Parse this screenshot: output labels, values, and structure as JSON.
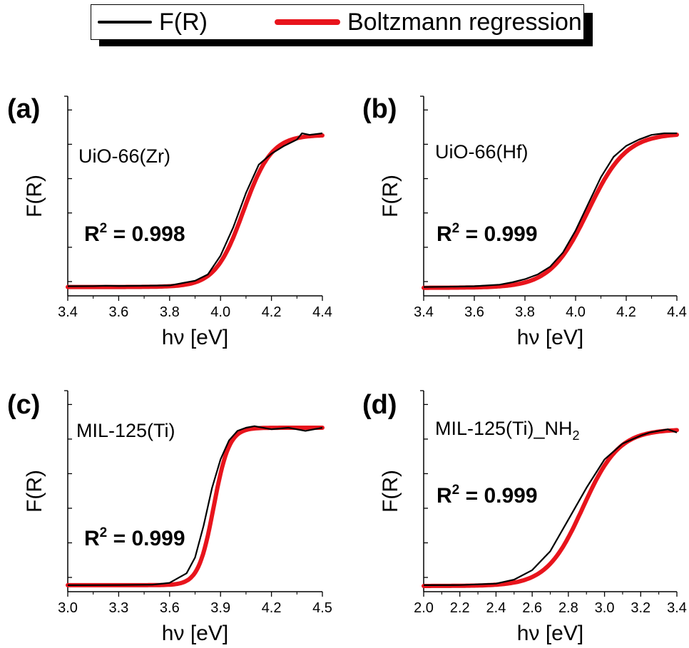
{
  "legend": {
    "entries": [
      {
        "label": "F(R)",
        "color": "#000000"
      },
      {
        "label": "Boltzmann regression",
        "color": "#e8141c"
      }
    ]
  },
  "chart_data": [
    {
      "type": "line",
      "panel_label": "(a)",
      "sample": "UiO-66(Zr)",
      "r2_prefix": "R",
      "r2_sup": "2",
      "r2_value": " = 0.998",
      "xlabel": "hν [eV]",
      "ylabel": "F(R)",
      "xlim": [
        3.4,
        4.4
      ],
      "xticks": [
        3.4,
        3.6,
        3.8,
        4.0,
        4.2,
        4.4
      ],
      "xtick_labels": [
        "3.4",
        "3.6",
        "3.8",
        "4.0",
        "4.2",
        "4.4"
      ],
      "ylim": [
        0,
        1
      ],
      "yticks_unlabeled": 6,
      "series": [
        {
          "name": "F(R)",
          "color": "#000000",
          "x": [
            3.4,
            3.5,
            3.55,
            3.6,
            3.7,
            3.8,
            3.9,
            3.95,
            4.0,
            4.05,
            4.1,
            4.15,
            4.2,
            4.25,
            4.3,
            4.32,
            4.35,
            4.4
          ],
          "y": [
            0.025,
            0.026,
            0.028,
            0.027,
            0.028,
            0.03,
            0.06,
            0.1,
            0.22,
            0.4,
            0.62,
            0.8,
            0.87,
            0.92,
            0.96,
            1.0,
            0.99,
            1.0
          ]
        },
        {
          "name": "Boltzmann regression",
          "color": "#e8141c",
          "boltzmann": {
            "A1": 0.02,
            "A2": 0.99,
            "x0": 4.09,
            "dx": 0.055
          }
        }
      ]
    },
    {
      "type": "line",
      "panel_label": "(b)",
      "sample": "UiO-66(Hf)",
      "r2_prefix": "R",
      "r2_sup": "2",
      "r2_value": " = 0.999",
      "xlabel": "hν [eV]",
      "ylabel": "F(R)",
      "xlim": [
        3.4,
        4.4
      ],
      "xticks": [
        3.4,
        3.6,
        3.8,
        4.0,
        4.2,
        4.4
      ],
      "xtick_labels": [
        "3.4",
        "3.6",
        "3.8",
        "4.0",
        "4.2",
        "4.4"
      ],
      "ylim": [
        0,
        1
      ],
      "yticks_unlabeled": 6,
      "series": [
        {
          "name": "F(R)",
          "color": "#000000",
          "x": [
            3.4,
            3.5,
            3.6,
            3.7,
            3.75,
            3.8,
            3.85,
            3.9,
            3.95,
            4.0,
            4.05,
            4.1,
            4.15,
            4.2,
            4.25,
            4.3,
            4.35,
            4.4
          ],
          "y": [
            0.02,
            0.022,
            0.025,
            0.035,
            0.05,
            0.07,
            0.1,
            0.15,
            0.24,
            0.38,
            0.55,
            0.72,
            0.85,
            0.92,
            0.96,
            0.99,
            1.0,
            1.0
          ]
        },
        {
          "name": "Boltzmann regression",
          "color": "#e8141c",
          "boltzmann": {
            "A1": 0.015,
            "A2": 1.0,
            "x0": 4.05,
            "dx": 0.075
          }
        }
      ]
    },
    {
      "type": "line",
      "panel_label": "(c)",
      "sample": "MIL-125(Ti)",
      "r2_prefix": "R",
      "r2_sup": "2",
      "r2_value": " = 0.999",
      "xlabel": "hν [eV]",
      "ylabel": "F(R)",
      "xlim": [
        3.0,
        4.5
      ],
      "xticks": [
        3.0,
        3.3,
        3.6,
        3.9,
        4.2,
        4.5
      ],
      "xtick_labels": [
        "3.0",
        "3.3",
        "3.6",
        "3.9",
        "4.2",
        "4.5"
      ],
      "ylim": [
        0,
        1
      ],
      "yticks_unlabeled": 6,
      "series": [
        {
          "name": "F(R)",
          "color": "#000000",
          "x": [
            3.0,
            3.3,
            3.5,
            3.6,
            3.7,
            3.75,
            3.8,
            3.85,
            3.9,
            3.95,
            4.0,
            4.05,
            4.1,
            4.2,
            4.3,
            4.4,
            4.5
          ],
          "y": [
            0.005,
            0.006,
            0.008,
            0.02,
            0.08,
            0.18,
            0.38,
            0.62,
            0.8,
            0.92,
            0.98,
            1.0,
            1.01,
            0.99,
            1.0,
            0.98,
            1.0
          ]
        },
        {
          "name": "Boltzmann regression",
          "color": "#e8141c",
          "boltzmann": {
            "A1": 0.005,
            "A2": 1.0,
            "x0": 3.86,
            "dx": 0.045
          }
        }
      ]
    },
    {
      "type": "line",
      "panel_label": "(d)",
      "sample_main": "MIL-125(Ti)_NH",
      "sample_sub": "2",
      "r2_prefix": "R",
      "r2_sup": "2",
      "r2_value": " = 0.999",
      "xlabel": "hν [eV]",
      "ylabel": "F(R)",
      "xlim": [
        2.0,
        3.4
      ],
      "xticks": [
        2.0,
        2.2,
        2.4,
        2.6,
        2.8,
        3.0,
        3.2,
        3.4
      ],
      "xtick_labels": [
        "2.0",
        "2.2",
        "2.4",
        "2.6",
        "2.8",
        "3.0",
        "3.2",
        "3.4"
      ],
      "ylim": [
        0,
        1
      ],
      "yticks_unlabeled": 6,
      "series": [
        {
          "name": "F(R)",
          "color": "#000000",
          "x": [
            2.0,
            2.2,
            2.4,
            2.5,
            2.6,
            2.7,
            2.8,
            2.9,
            3.0,
            3.1,
            3.2,
            3.25,
            3.3,
            3.35,
            3.4
          ],
          "y": [
            0.005,
            0.006,
            0.015,
            0.04,
            0.1,
            0.22,
            0.42,
            0.62,
            0.8,
            0.9,
            0.95,
            0.97,
            0.98,
            0.99,
            0.97
          ]
        },
        {
          "name": "Boltzmann regression",
          "color": "#e8141c",
          "boltzmann": {
            "A1": 0.0,
            "A2": 0.99,
            "x0": 2.88,
            "dx": 0.1
          }
        }
      ]
    }
  ]
}
